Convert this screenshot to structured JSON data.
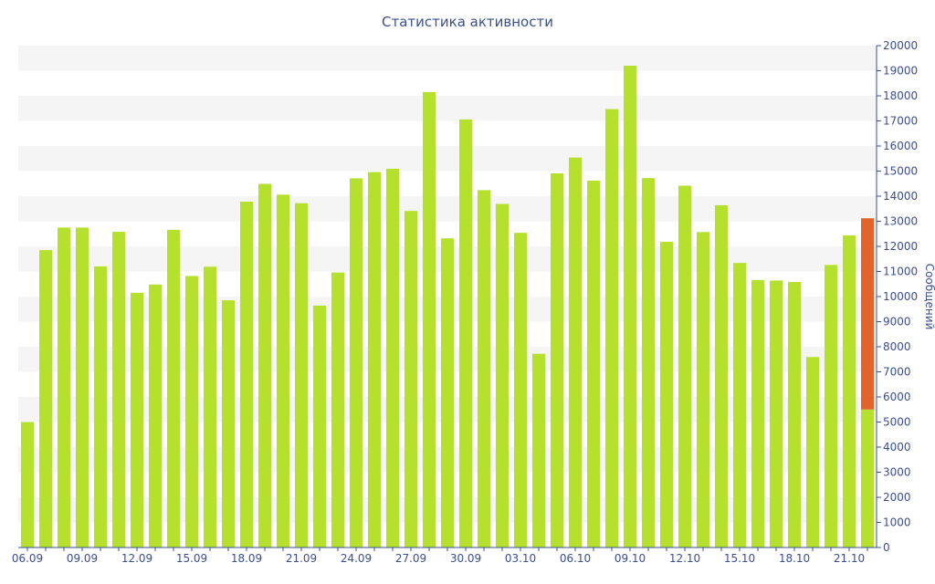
{
  "chart_data": {
    "type": "bar",
    "title": "Статистика активности",
    "ylabel": "Сообщений",
    "xlabel": "",
    "ylim": [
      0,
      20000
    ],
    "ytick_step": 1000,
    "grid": "alternating horizontal bands",
    "y_axis_side": "right",
    "categories": [
      "06.09",
      "07.09",
      "08.09",
      "09.09",
      "10.09",
      "11.09",
      "12.09",
      "13.09",
      "14.09",
      "15.09",
      "16.09",
      "17.09",
      "18.09",
      "19.09",
      "20.09",
      "21.09",
      "22.09",
      "23.09",
      "24.09",
      "25.09",
      "26.09",
      "27.09",
      "28.09",
      "29.09",
      "30.09",
      "01.10",
      "02.10",
      "03.10",
      "04.10",
      "05.10",
      "06.10",
      "07.10",
      "08.10",
      "09.10",
      "10.10",
      "11.10",
      "12.10",
      "13.10",
      "14.10",
      "15.10",
      "16.10",
      "17.10",
      "18.10",
      "19.10",
      "20.10",
      "21.10",
      "22.10"
    ],
    "x_tick_labels": [
      "06.09",
      "09.09",
      "12.09",
      "15.09",
      "18.09",
      "21.09",
      "24.09",
      "27.09",
      "30.09",
      "03.10",
      "06.10",
      "09.10",
      "12.10",
      "15.10",
      "18.10",
      "21.10"
    ],
    "series": [
      {
        "color": "#b5e02d",
        "values": [
          5000,
          11850,
          12750,
          12750,
          11200,
          12580,
          10150,
          10480,
          12660,
          10820,
          11190,
          9850,
          13780,
          14490,
          14060,
          13720,
          9640,
          10960,
          14710,
          14960,
          15090,
          13410,
          18150,
          12320,
          17060,
          14240,
          13690,
          12540,
          7720,
          14910,
          15540,
          14620,
          17470,
          19200,
          14720,
          12180,
          14420,
          12570,
          13640,
          11340,
          10660,
          10640,
          10580,
          7590,
          11260,
          12440,
          5500
        ]
      },
      {
        "color": "#e2632c",
        "stacked_on_category": "22.10",
        "values_start": [
          5500
        ],
        "values_end": [
          13120
        ]
      }
    ]
  }
}
